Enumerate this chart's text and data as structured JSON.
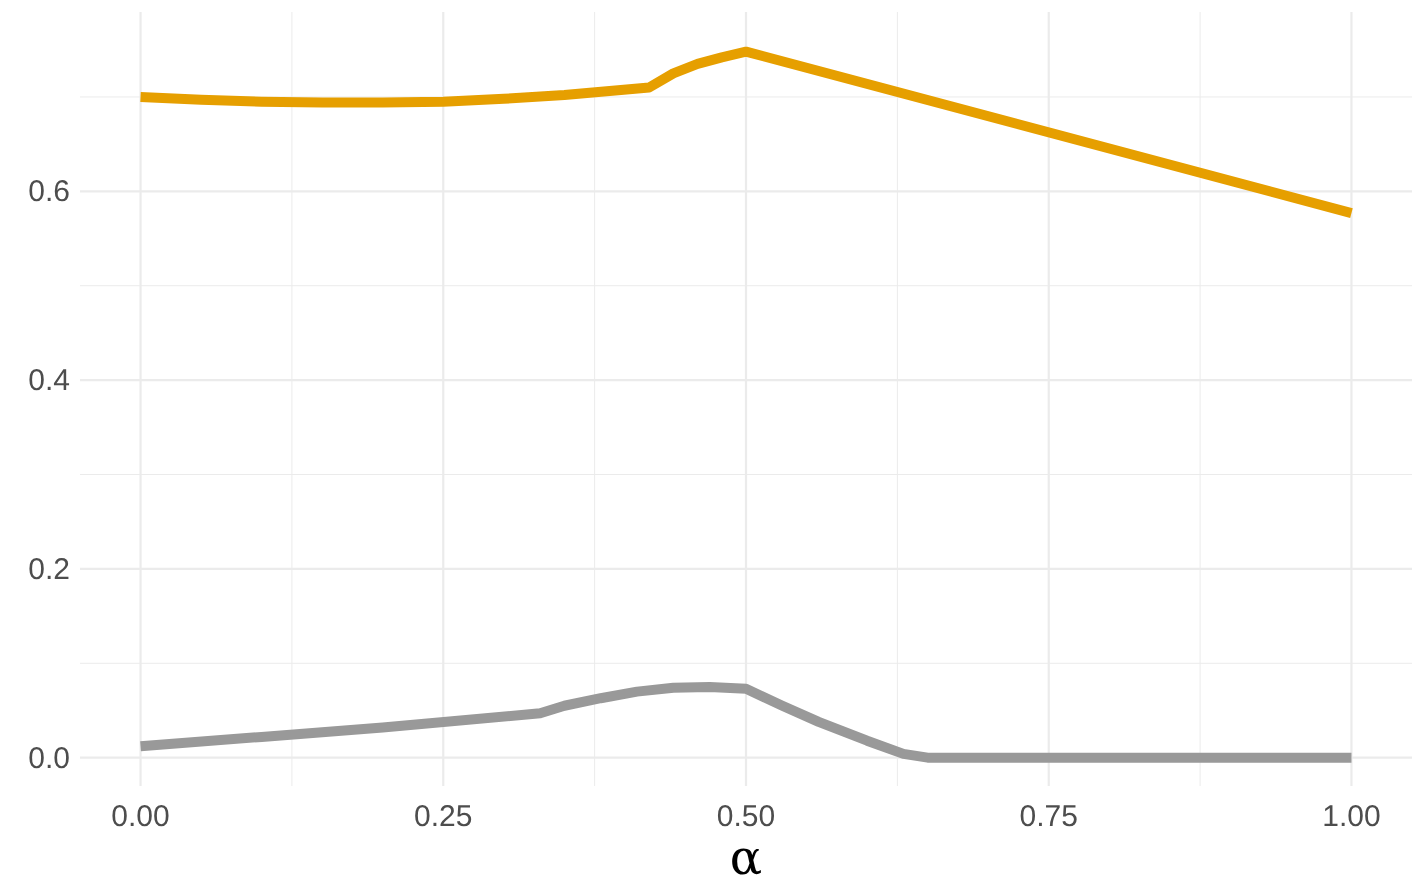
{
  "chart_data": {
    "type": "line",
    "xlabel": "α",
    "xlim": [
      -0.05,
      1.05
    ],
    "ylim": [
      -0.03,
      0.79
    ],
    "xticks": [
      {
        "value": 0,
        "label": "0.00"
      },
      {
        "value": 0.125,
        "label": null
      },
      {
        "value": 0.25,
        "label": "0.25"
      },
      {
        "value": 0.375,
        "label": null
      },
      {
        "value": 0.5,
        "label": "0.50"
      },
      {
        "value": 0.625,
        "label": null
      },
      {
        "value": 0.75,
        "label": "0.75"
      },
      {
        "value": 0.875,
        "label": null
      },
      {
        "value": 1,
        "label": "1.00"
      }
    ],
    "yticks": [
      {
        "value": 0,
        "label": "0.0"
      },
      {
        "value": 0.1,
        "label": null
      },
      {
        "value": 0.2,
        "label": "0.2"
      },
      {
        "value": 0.3,
        "label": null
      },
      {
        "value": 0.4,
        "label": "0.4"
      },
      {
        "value": 0.5,
        "label": null
      },
      {
        "value": 0.6,
        "label": "0.6"
      },
      {
        "value": 0.7,
        "label": null
      }
    ],
    "grid": true,
    "marker": "none",
    "line_style": "solid",
    "series": [
      {
        "color": "#e69f00",
        "x": [
          0,
          0.05,
          0.1,
          0.15,
          0.2,
          0.25,
          0.3,
          0.35,
          0.42,
          0.44,
          0.46,
          0.48,
          0.5,
          1
        ],
        "values": [
          0.7,
          0.697,
          0.695,
          0.694,
          0.694,
          0.695,
          0.698,
          0.702,
          0.71,
          0.725,
          0.735,
          0.742,
          0.748,
          0.577
        ]
      },
      {
        "color": "#999999",
        "x": [
          0,
          0.1,
          0.2,
          0.33,
          0.35,
          0.38,
          0.41,
          0.44,
          0.47,
          0.5,
          0.53,
          0.56,
          0.6,
          0.63,
          0.65,
          1
        ],
        "values": [
          0.012,
          0.022,
          0.032,
          0.047,
          0.055,
          0.063,
          0.07,
          0.074,
          0.075,
          0.073,
          0.055,
          0.038,
          0.018,
          0.004,
          0,
          0
        ]
      }
    ]
  }
}
